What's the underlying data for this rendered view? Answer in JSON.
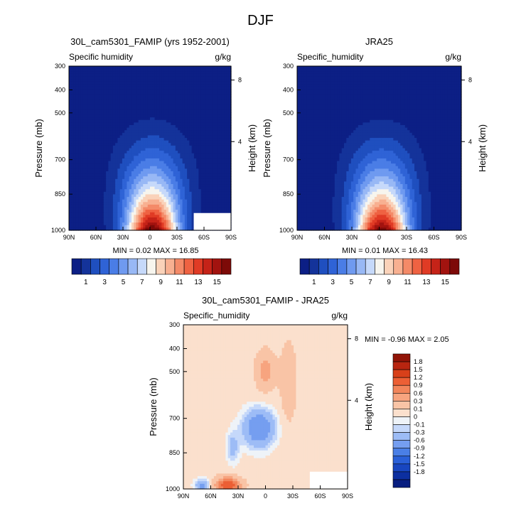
{
  "page": {
    "title": "DJF"
  },
  "colors": {
    "abs_scale": [
      "#0c1f85",
      "#14339a",
      "#1f4fbf",
      "#2f63d6",
      "#4a7de6",
      "#6f9af0",
      "#98b8f5",
      "#c6d9fa",
      "#f7f5ee",
      "#fad2b9",
      "#f8b091",
      "#f48a68",
      "#ef6242",
      "#e03b25",
      "#c52318",
      "#a2130f",
      "#7d0a08"
    ],
    "diff_scale": [
      "#081e80",
      "#0c2fa0",
      "#1846c0",
      "#2a60d8",
      "#4a7fe6",
      "#759ef0",
      "#9dbcf6",
      "#c5d8fa",
      "#eef3f8",
      "#fbe0cd",
      "#f9c4a6",
      "#f7a47f",
      "#f2855b",
      "#ec5f35",
      "#d8401a",
      "#b82510",
      "#911407"
    ]
  },
  "chart_data": [
    {
      "type": "heatmap",
      "title": "30L_cam5301_FAMIP (yrs 1952-2001)",
      "subtitle_left": "Specific humidity",
      "units": "g/kg",
      "ylabel": "Pressure (mb)",
      "ylabel_right": "Height (km)",
      "x_ticks": [
        "90N",
        "60N",
        "30N",
        "0",
        "30S",
        "60S",
        "90S"
      ],
      "y_ticks": [
        "300",
        "400",
        "500",
        "700",
        "850",
        "1000"
      ],
      "y_right_ticks": [
        "8",
        "4"
      ],
      "stats": {
        "min_label": "MIN =",
        "min": "0.02",
        "max_label": "MAX =",
        "max": "16.85"
      },
      "colorbar": {
        "labels": [
          "1",
          "3",
          "5",
          "7",
          "9",
          "11",
          "13",
          "15"
        ]
      },
      "peak_value": 16.85
    },
    {
      "type": "heatmap",
      "title": "JRA25",
      "subtitle_left": "Specific_humidity",
      "units": "g/kg",
      "ylabel": "Pressure (mb)",
      "ylabel_right": "Height (km)",
      "x_ticks": [
        "90N",
        "60N",
        "30N",
        "0",
        "30S",
        "60S",
        "90S"
      ],
      "y_ticks": [
        "300",
        "400",
        "500",
        "700",
        "850",
        "1000"
      ],
      "y_right_ticks": [
        "8",
        "4"
      ],
      "stats": {
        "min_label": "MIN =",
        "min": "0.01",
        "max_label": "MAX =",
        "max": "16.43"
      },
      "colorbar": {
        "labels": [
          "1",
          "3",
          "5",
          "7",
          "9",
          "11",
          "13",
          "15"
        ]
      },
      "peak_value": 16.43
    },
    {
      "type": "heatmap",
      "title": "30L_cam5301_FAMIP - JRA25",
      "subtitle_left": "Specific_humidity",
      "units": "g/kg",
      "ylabel": "Pressure (mb)",
      "ylabel_right": "Height (km)",
      "x_ticks": [
        "90N",
        "60N",
        "30N",
        "0",
        "30S",
        "60S",
        "90S"
      ],
      "y_ticks": [
        "300",
        "400",
        "500",
        "700",
        "850",
        "1000"
      ],
      "y_right_ticks": [
        "8",
        "4"
      ],
      "stats": {
        "min_label": "MIN =",
        "min": "-0.96",
        "max_label": "MAX =",
        "max": "2.05"
      },
      "colorbar": {
        "labels": [
          "1.8",
          "1.5",
          "1.2",
          "0.9",
          "0.6",
          "0.3",
          "0.1",
          "0",
          "-0.1",
          "-0.3",
          "-0.6",
          "-0.9",
          "-1.2",
          "-1.5",
          "-1.8"
        ]
      }
    }
  ]
}
